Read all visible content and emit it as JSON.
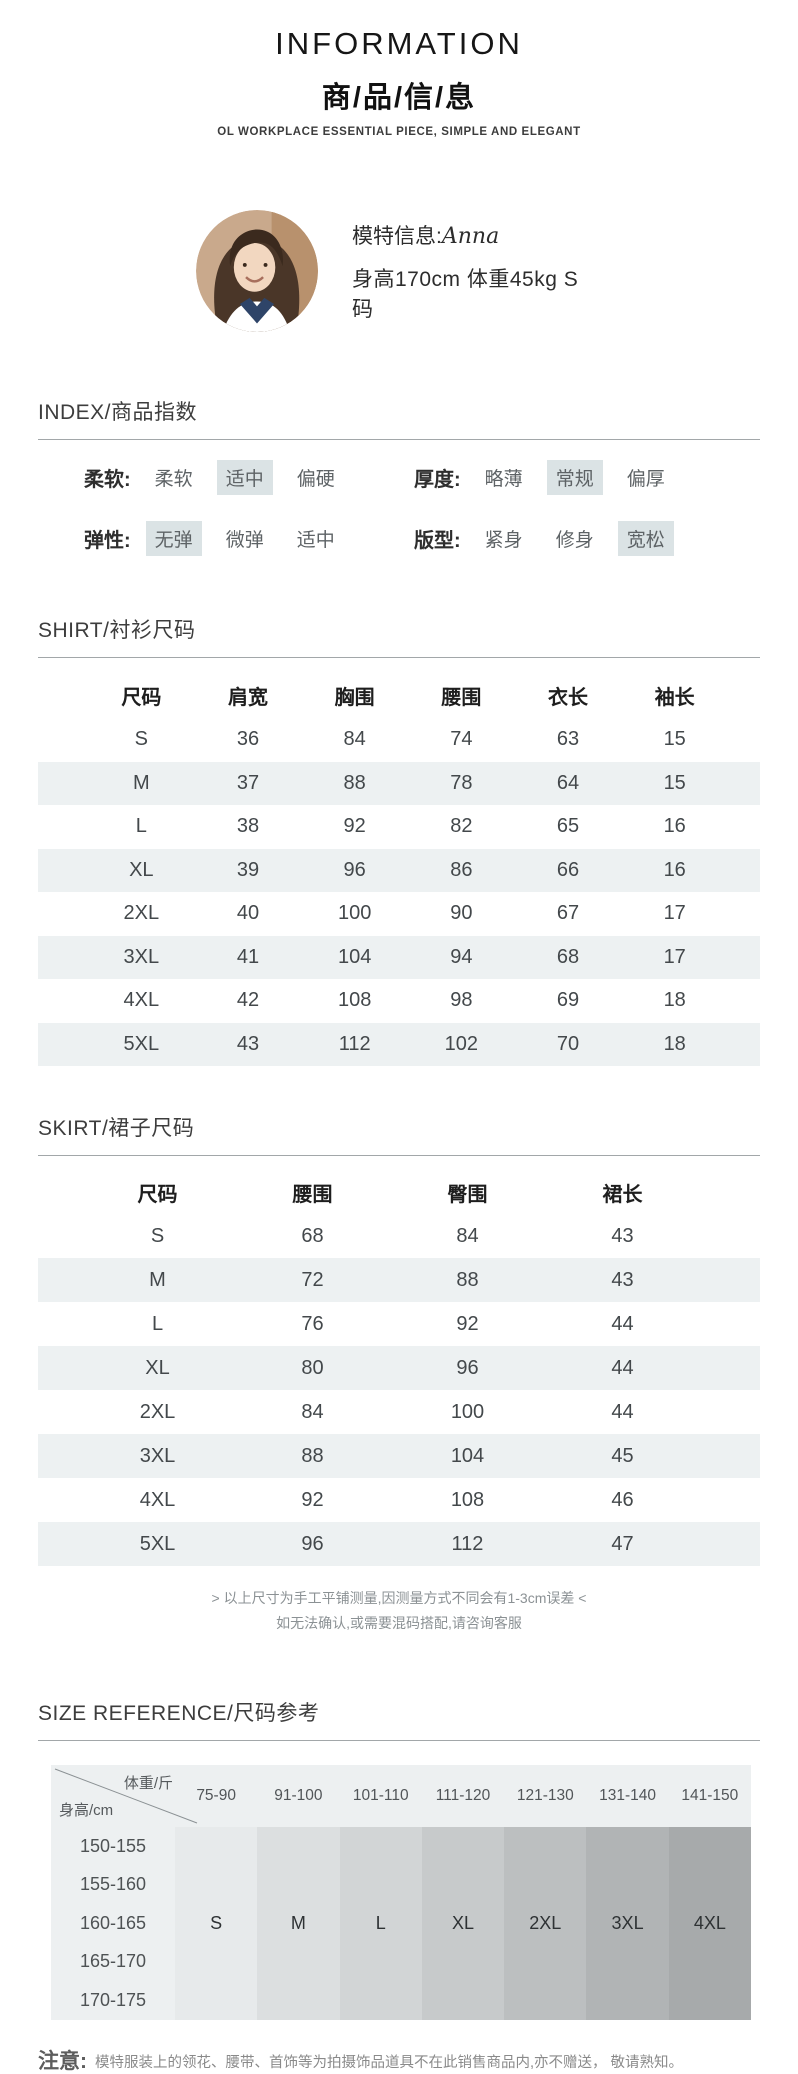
{
  "header": {
    "title": "INFORMATION",
    "subtitle": "商/品/信/息",
    "tagline": "OL WORKPLACE ESSENTIAL PIECE, SIMPLE AND ELEGANT"
  },
  "model": {
    "label": "模特信息:",
    "name": "Anna",
    "stats": "身高170cm  体重45kg  S 码"
  },
  "index": {
    "title": "INDEX/商品指数",
    "highlight_color": "#dbe3e5",
    "rows": [
      {
        "label": "柔软:",
        "options": [
          "柔软",
          "适中",
          "偏硬"
        ],
        "selected": 1
      },
      {
        "label": "厚度:",
        "options": [
          "略薄",
          "常规",
          "偏厚"
        ],
        "selected": 1
      },
      {
        "label": "弹性:",
        "options": [
          "无弹",
          "微弹",
          "适中"
        ],
        "selected": 0
      },
      {
        "label": "版型:",
        "options": [
          "紧身",
          "修身",
          "宽松"
        ],
        "selected": 2
      }
    ]
  },
  "shirt": {
    "title": "SHIRT/衬衫尺码",
    "columns": [
      "尺码",
      "肩宽",
      "胸围",
      "腰围",
      "衣长",
      "袖长"
    ],
    "rows": [
      [
        "S",
        "36",
        "84",
        "74",
        "63",
        "15"
      ],
      [
        "M",
        "37",
        "88",
        "78",
        "64",
        "15"
      ],
      [
        "L",
        "38",
        "92",
        "82",
        "65",
        "16"
      ],
      [
        "XL",
        "39",
        "96",
        "86",
        "66",
        "16"
      ],
      [
        "2XL",
        "40",
        "100",
        "90",
        "67",
        "17"
      ],
      [
        "3XL",
        "41",
        "104",
        "94",
        "68",
        "17"
      ],
      [
        "4XL",
        "42",
        "108",
        "98",
        "69",
        "18"
      ],
      [
        "5XL",
        "43",
        "112",
        "102",
        "70",
        "18"
      ]
    ]
  },
  "skirt": {
    "title": "SKIRT/裙子尺码",
    "columns": [
      "尺码",
      "腰围",
      "臀围",
      "裙长"
    ],
    "rows": [
      [
        "S",
        "68",
        "84",
        "43"
      ],
      [
        "M",
        "72",
        "88",
        "43"
      ],
      [
        "L",
        "76",
        "92",
        "44"
      ],
      [
        "XL",
        "80",
        "96",
        "44"
      ],
      [
        "2XL",
        "84",
        "100",
        "44"
      ],
      [
        "3XL",
        "88",
        "104",
        "45"
      ],
      [
        "4XL",
        "92",
        "108",
        "46"
      ],
      [
        "5XL",
        "96",
        "112",
        "47"
      ]
    ],
    "notes": [
      "> 以上尺寸为手工平铺测量,因测量方式不同会有1-3cm误差 <",
      "如无法确认,或需要混码搭配,请咨询客服"
    ]
  },
  "size_reference": {
    "title": "SIZE REFERENCE/尺码参考",
    "corner_top": "体重/斤",
    "corner_bottom": "身高/cm",
    "weight_columns": [
      "75-90",
      "91-100",
      "101-110",
      "111-120",
      "121-130",
      "131-140",
      "141-150"
    ],
    "height_rows": [
      "150-155",
      "155-160",
      "160-165",
      "165-170",
      "170-175"
    ],
    "sizes": [
      "S",
      "M",
      "L",
      "XL",
      "2XL",
      "3XL",
      "4XL"
    ],
    "column_colors": [
      "#e7eaeb",
      "#dcdfe0",
      "#d2d5d6",
      "#c7cacb",
      "#bcbfc0",
      "#b1b4b5",
      "#a7aaab"
    ]
  },
  "footer": {
    "label": "注意:",
    "text": "模特服装上的领花、腰带、首饰等为拍摄饰品道具不在此销售商品内,亦不赠送， 敬请熟知。"
  }
}
